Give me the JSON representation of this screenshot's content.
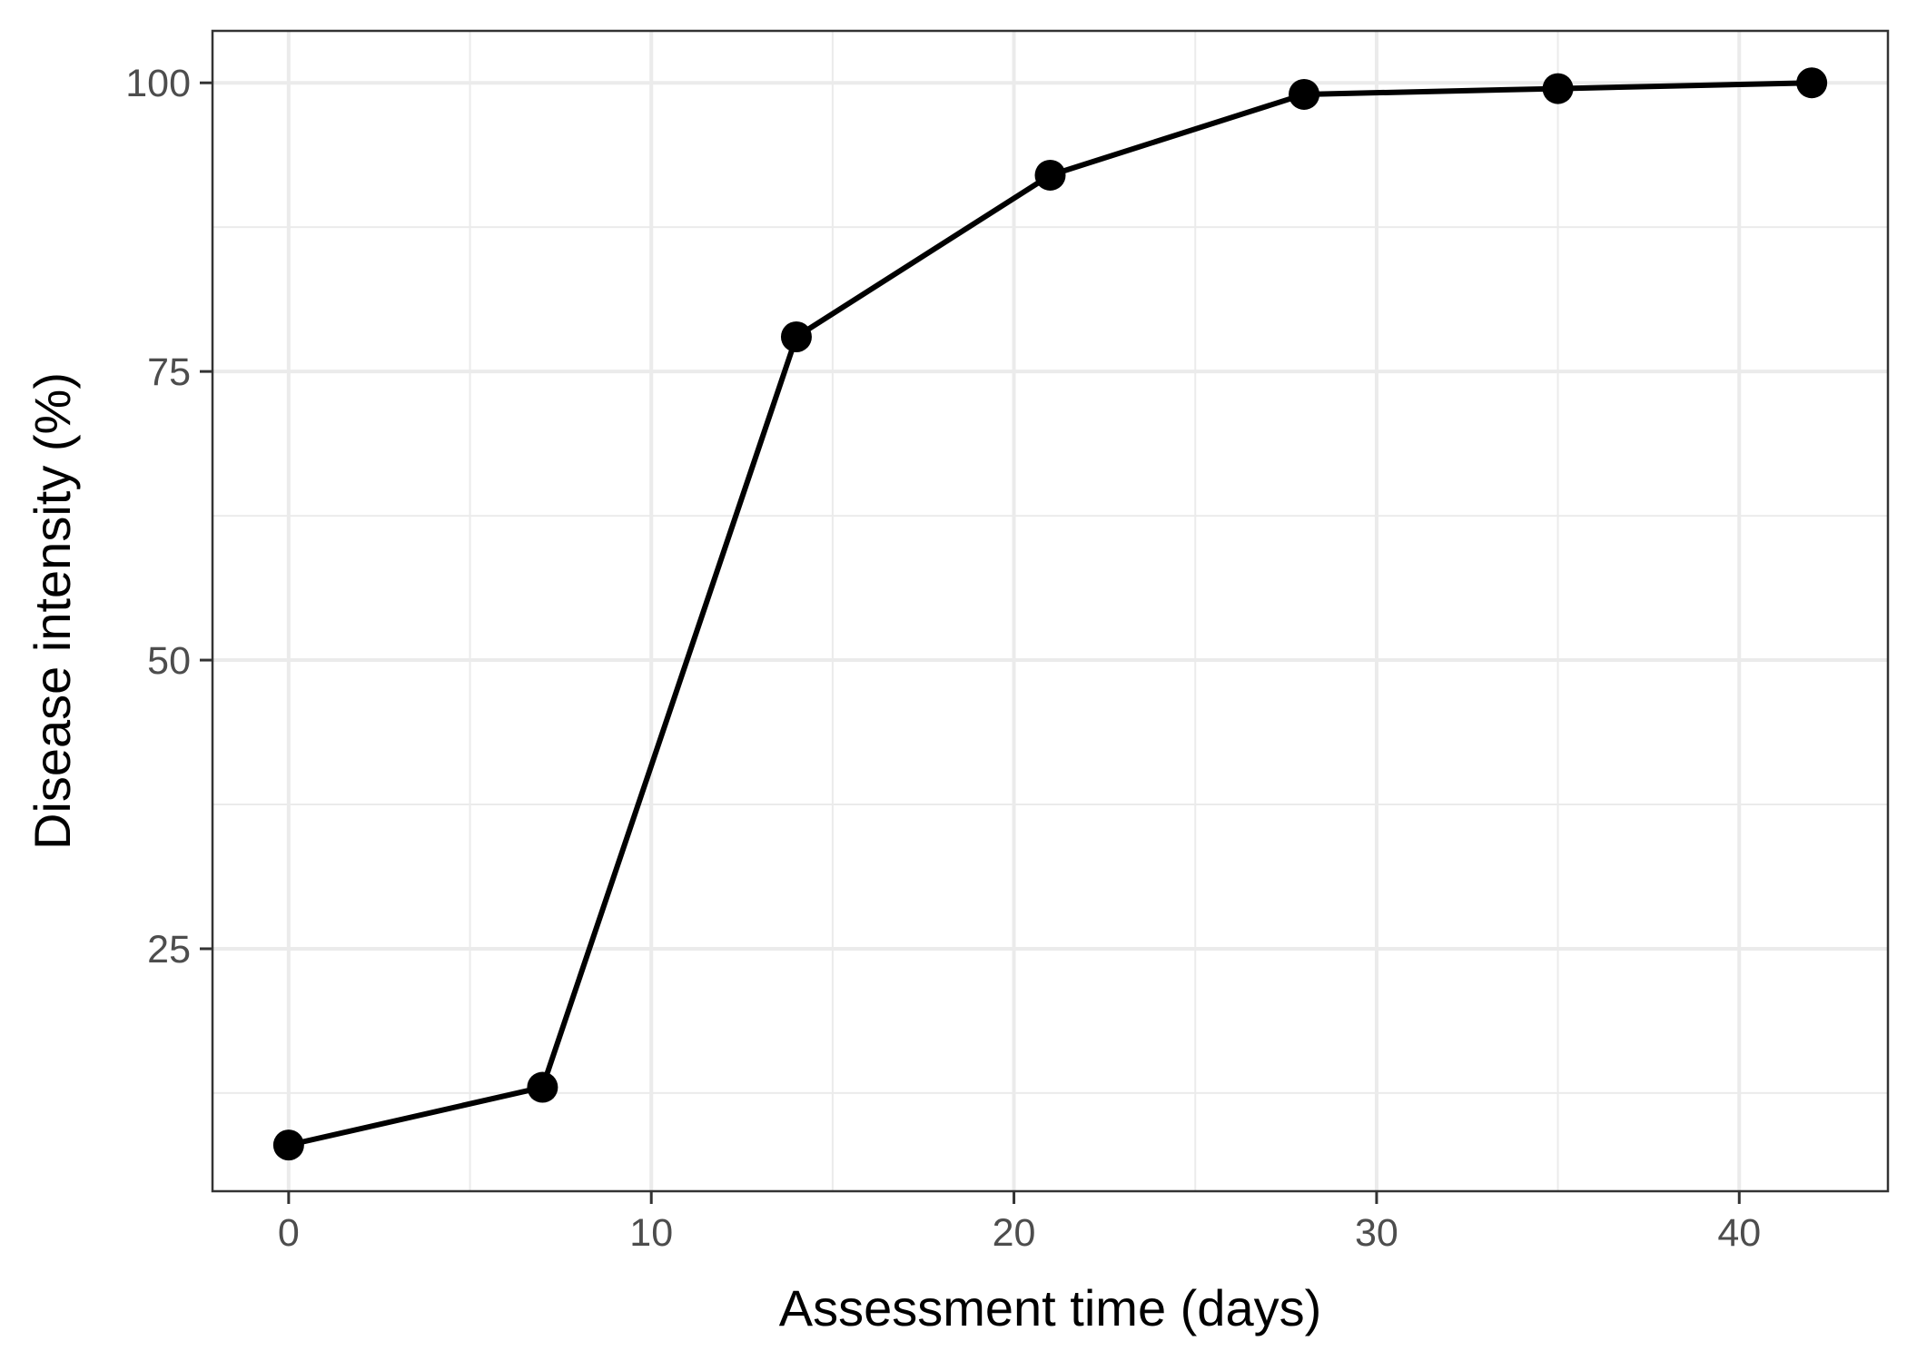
{
  "chart_data": {
    "type": "line",
    "title": "",
    "xlabel": "Assessment time (days)",
    "ylabel": "Disease intensity (%)",
    "x": [
      0,
      7,
      14,
      21,
      28,
      35,
      42
    ],
    "series": [
      {
        "values": [
          8,
          13,
          78,
          92,
          99,
          99.5,
          100
        ]
      }
    ],
    "xlim": [
      -2.1,
      44.1
    ],
    "ylim": [
      4,
      104.5
    ],
    "x_ticks": [
      0,
      10,
      20,
      30,
      40
    ],
    "x_tick_labels": [
      "0",
      "10",
      "20",
      "30",
      "40"
    ],
    "x_minor_ticks": [
      5,
      15,
      25,
      35
    ],
    "y_ticks": [
      25,
      50,
      75,
      100
    ],
    "y_tick_labels": [
      "25",
      "50",
      "75",
      "100"
    ],
    "y_minor_ticks": [
      12.5,
      37.5,
      62.5,
      87.5
    ],
    "grid": true,
    "line_color": "#000000",
    "point_color": "#000000",
    "grid_color": "#ebebeb",
    "panel_border_color": "#333333",
    "legend": "none"
  }
}
